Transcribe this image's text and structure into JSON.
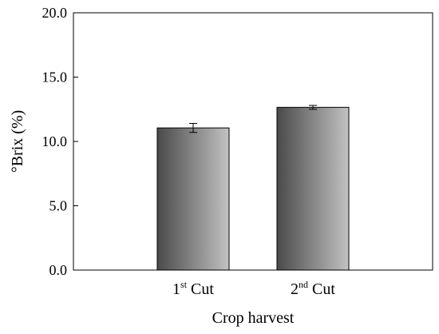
{
  "chart_data": {
    "type": "bar",
    "categories": [
      {
        "base": "1",
        "sup": "st",
        "rest": " Cut"
      },
      {
        "base": "2",
        "sup": "nd",
        "rest": " Cut"
      }
    ],
    "values": [
      11.05,
      12.65
    ],
    "error": [
      0.35,
      0.15
    ],
    "xlabel": "Crop harvest",
    "ylabel": "°Brix (%)",
    "ylim": [
      0,
      20
    ],
    "yticks": [
      "0.0",
      "5.0",
      "10.0",
      "15.0",
      "20.0"
    ],
    "ytick_values": [
      0,
      5,
      10,
      15,
      20
    ],
    "grid": false,
    "colors": {
      "bar_dark": "#4a4a4a",
      "bar_light": "#c2c2c2",
      "axis": "#000000"
    }
  }
}
